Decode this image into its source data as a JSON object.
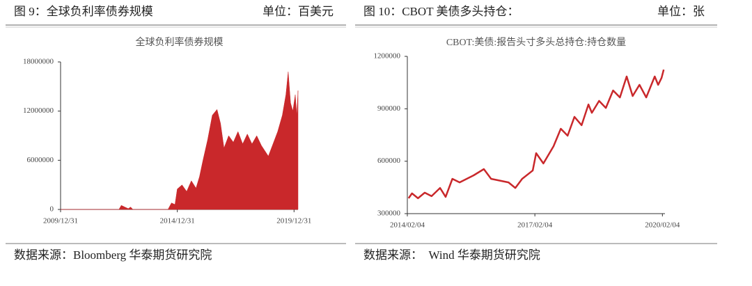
{
  "chart_data": [
    {
      "type": "area",
      "caption": "图 9：全球负利率债券规模",
      "unit": "单位：百美元",
      "title": "全球负利率债券规模",
      "source": "数据来源：Bloomberg 华泰期货研究院",
      "color": "#c9282b",
      "x": [
        2010.0,
        2012.5,
        2012.6,
        2012.75,
        2012.9,
        2013.0,
        2013.1,
        2014.6,
        2014.75,
        2014.9,
        2015.0,
        2015.2,
        2015.4,
        2015.6,
        2015.8,
        2015.95,
        2016.1,
        2016.3,
        2016.5,
        2016.7,
        2016.85,
        2017.0,
        2017.2,
        2017.4,
        2017.6,
        2017.8,
        2018.0,
        2018.2,
        2018.4,
        2018.6,
        2018.9,
        2019.1,
        2019.3,
        2019.5,
        2019.65,
        2019.75,
        2019.85,
        2019.95,
        2020.05,
        2020.12,
        2020.17
      ],
      "values": [
        0,
        0,
        500000,
        300000,
        100000,
        300000,
        0,
        0,
        800000,
        600000,
        2500000,
        3000000,
        2200000,
        3500000,
        2600000,
        4000000,
        6000000,
        8500000,
        11500000,
        12200000,
        10500000,
        7500000,
        9000000,
        8200000,
        9500000,
        8000000,
        9200000,
        8000000,
        9000000,
        7800000,
        6500000,
        8000000,
        9500000,
        11500000,
        14000000,
        16800000,
        13000000,
        12000000,
        14000000,
        11500000,
        14500000
      ],
      "xlim": [
        2010.0,
        2020.17
      ],
      "xticks": [
        {
          "value": 2010.0,
          "label": "2009/12/31"
        },
        {
          "value": 2015.0,
          "label": "2014/12/31"
        },
        {
          "value": 2020.0,
          "label": "2019/12/31"
        }
      ],
      "ylim": [
        0,
        18000000
      ],
      "yticks": [
        0,
        6000000,
        12000000,
        18000000
      ]
    },
    {
      "type": "line",
      "caption": "图 10：CBOT 美债多头持仓：",
      "unit": "单位：张",
      "title": "CBOT:美债:报告头寸多头总持仓:持仓数量",
      "source": "数据来源：　Wind 华泰期货研究院",
      "color": "#c9282b",
      "x": [
        2014.12,
        2014.2,
        2014.34,
        2014.5,
        2014.66,
        2014.86,
        2014.99,
        2015.15,
        2015.32,
        2015.65,
        2015.89,
        2016.06,
        2016.47,
        2016.63,
        2016.79,
        2017.04,
        2017.12,
        2017.29,
        2017.53,
        2017.7,
        2017.86,
        2018.02,
        2018.19,
        2018.35,
        2018.43,
        2018.6,
        2018.76,
        2018.93,
        2019.09,
        2019.25,
        2019.39,
        2019.55,
        2019.71,
        2019.91,
        2019.99,
        2020.07,
        2020.12
      ],
      "values": [
        388000,
        416000,
        388000,
        420000,
        400000,
        447000,
        396000,
        499000,
        479000,
        519000,
        555000,
        499000,
        479000,
        447000,
        499000,
        547000,
        646000,
        587000,
        686000,
        786000,
        746000,
        854000,
        806000,
        925000,
        877000,
        945000,
        905000,
        1005000,
        965000,
        1085000,
        973000,
        1037000,
        965000,
        1085000,
        1037000,
        1077000,
        1124000
      ],
      "xlim": [
        2014.09,
        2020.15
      ],
      "xticks": [
        {
          "value": 2014.09,
          "label": "2014/02/04"
        },
        {
          "value": 2017.09,
          "label": "2017/02/04"
        },
        {
          "value": 2020.09,
          "label": "2020/02/04"
        }
      ],
      "ylim": [
        300000,
        1200000
      ],
      "yticks": [
        300000,
        600000,
        900000,
        1200000
      ]
    }
  ]
}
